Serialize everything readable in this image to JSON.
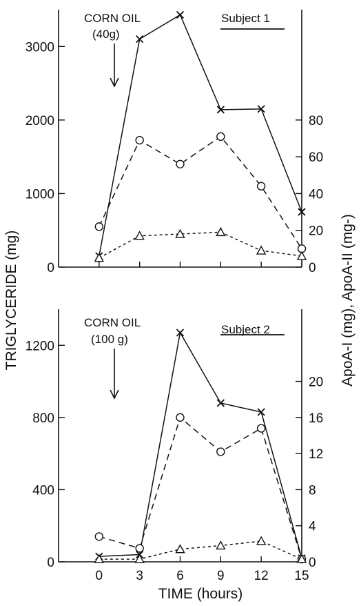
{
  "chart_data": [
    {
      "type": "line",
      "panel": "top",
      "annotation": {
        "line1": "CORN OIL",
        "line2": "(40g)"
      },
      "subject_label": "Subject 1",
      "left_axis": {
        "ticks": [
          0,
          1000,
          2000,
          3000
        ],
        "ylim": [
          0,
          3500
        ]
      },
      "right_axis": {
        "ticks": [
          0,
          20,
          40,
          60,
          80
        ],
        "ylim": [
          0,
          140
        ]
      },
      "x": [
        0,
        3,
        6,
        9,
        12,
        15
      ],
      "series": [
        {
          "marker": "x",
          "axis": "left",
          "line": "solid",
          "values": [
            150,
            3100,
            3430,
            2140,
            2150,
            750
          ]
        },
        {
          "marker": "circle",
          "axis": "right",
          "line": "dashed",
          "values": [
            22,
            69,
            56,
            71,
            44,
            10
          ]
        },
        {
          "marker": "triangle",
          "axis": "right",
          "line": "dotted",
          "values": [
            5,
            17,
            18,
            19,
            9,
            6
          ]
        }
      ]
    },
    {
      "type": "line",
      "panel": "bottom",
      "annotation": {
        "line1": "CORN OIL",
        "line2": "(100 g)"
      },
      "subject_label": "Subject 2",
      "left_axis": {
        "ticks": [
          0,
          400,
          800,
          1200
        ],
        "ylim": [
          0,
          1400
        ]
      },
      "right_axis": {
        "ticks": [
          0,
          4,
          8,
          12,
          16,
          20
        ],
        "ylim": [
          0,
          28
        ]
      },
      "x": [
        0,
        3,
        6,
        9,
        12,
        15
      ],
      "series": [
        {
          "marker": "x",
          "axis": "left",
          "line": "solid",
          "values": [
            30,
            40,
            1270,
            880,
            830,
            20
          ]
        },
        {
          "marker": "circle",
          "axis": "right",
          "line": "dashed",
          "values": [
            2.8,
            1.5,
            16,
            12.2,
            14.8,
            0.3
          ]
        },
        {
          "marker": "triangle",
          "axis": "right",
          "line": "dotted",
          "values": [
            0.3,
            0.3,
            1.4,
            1.8,
            2.3,
            0.3
          ]
        }
      ]
    }
  ],
  "shared_axes": {
    "xlabel": "TIME (hours)",
    "x_ticks": [
      "0",
      "3",
      "6",
      "9",
      "12",
      "15"
    ],
    "xlim": [
      -3,
      15
    ],
    "ylabel_left": "TRIGLYCERIDE (mg)",
    "ylabel_right": "ApoA-I (mg), ApoA-II (mg-)"
  }
}
